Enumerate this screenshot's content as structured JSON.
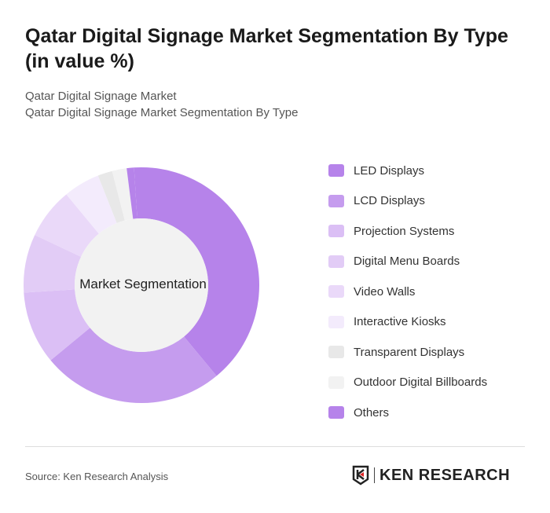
{
  "title": "Qatar Digital Signage Market Segmentation By Type (in value %)",
  "breadcrumb": [
    "Qatar Digital Signage Market",
    "Qatar Digital Signage Market Segmentation By Type"
  ],
  "source": "Source: Ken Research Analysis",
  "logo_text": "KEN RESEARCH",
  "chart_data": {
    "type": "pie",
    "donut": true,
    "center_label": "Market Segmentation",
    "legend_position": "right",
    "unit": "%",
    "categories": [
      "LED Displays",
      "LCD Displays",
      "Projection Systems",
      "Digital Menu Boards",
      "Video Walls",
      "Interactive Kiosks",
      "Transparent Displays",
      "Outdoor Digital Billboards",
      "Others"
    ],
    "values": [
      40,
      25,
      10,
      8,
      7,
      5,
      2,
      2,
      1
    ],
    "colors": [
      "#b683ea",
      "#c59cee",
      "#dbbff5",
      "#e2ccf6",
      "#ead9f9",
      "#f3ebfc",
      "#e8e8e8",
      "#f2f2f2",
      "#b683ea"
    ]
  }
}
